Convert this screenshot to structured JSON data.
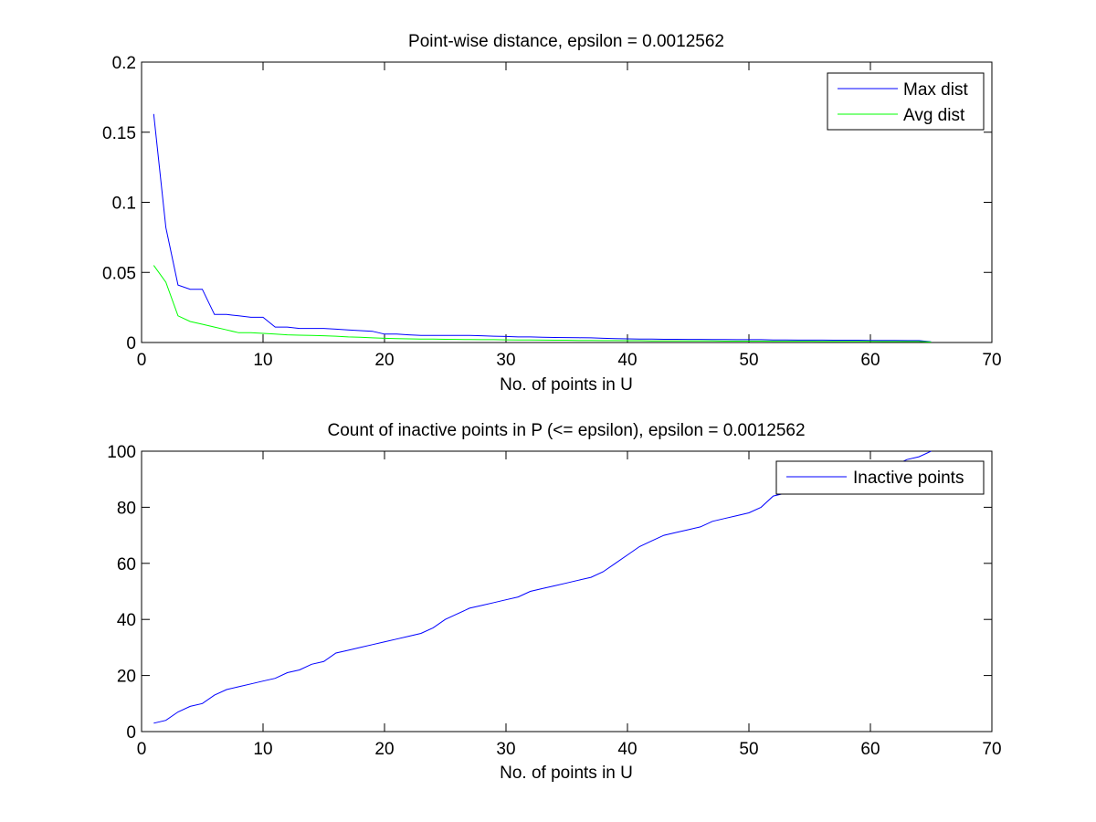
{
  "chart_data": [
    {
      "type": "line",
      "title": "Point-wise distance, epsilon = 0.0012562",
      "xlabel": "No. of points in U",
      "ylabel": "",
      "xlim": [
        0,
        70
      ],
      "ylim": [
        0,
        0.2
      ],
      "xticks": [
        "0",
        "10",
        "20",
        "30",
        "40",
        "50",
        "60",
        "70"
      ],
      "yticks": [
        "0",
        "0.05",
        "0.1",
        "0.15",
        "0.2"
      ],
      "grid": false,
      "legend_position": "top-right",
      "series": [
        {
          "name": "Max dist",
          "color": "#0000ff",
          "x": [
            1,
            2,
            3,
            4,
            5,
            6,
            7,
            8,
            9,
            10,
            11,
            12,
            13,
            14,
            15,
            16,
            17,
            18,
            19,
            20,
            21,
            22,
            23,
            24,
            25,
            26,
            27,
            28,
            29,
            30,
            31,
            32,
            33,
            34,
            35,
            36,
            37,
            38,
            39,
            40,
            41,
            42,
            43,
            44,
            45,
            46,
            47,
            48,
            49,
            50,
            51,
            52,
            53,
            54,
            55,
            56,
            57,
            58,
            59,
            60,
            61,
            62,
            63,
            64,
            65
          ],
          "values": [
            0.163,
            0.082,
            0.041,
            0.038,
            0.038,
            0.02,
            0.02,
            0.019,
            0.018,
            0.018,
            0.011,
            0.011,
            0.01,
            0.01,
            0.01,
            0.0095,
            0.009,
            0.0085,
            0.008,
            0.006,
            0.006,
            0.0055,
            0.005,
            0.005,
            0.005,
            0.005,
            0.005,
            0.0048,
            0.0045,
            0.0043,
            0.004,
            0.004,
            0.0038,
            0.0036,
            0.0035,
            0.0034,
            0.0033,
            0.003,
            0.0028,
            0.0026,
            0.0024,
            0.0024,
            0.0023,
            0.0023,
            0.0022,
            0.0022,
            0.0021,
            0.0021,
            0.002,
            0.002,
            0.002,
            0.0018,
            0.0018,
            0.0017,
            0.0017,
            0.0017,
            0.0016,
            0.0016,
            0.0016,
            0.0015,
            0.0015,
            0.0015,
            0.0014,
            0.0014,
            0.0005
          ]
        },
        {
          "name": "Avg dist",
          "color": "#00ff00",
          "x": [
            1,
            2,
            3,
            4,
            5,
            6,
            7,
            8,
            9,
            10,
            11,
            12,
            13,
            14,
            15,
            16,
            17,
            18,
            19,
            20,
            21,
            22,
            23,
            24,
            25,
            26,
            27,
            28,
            29,
            30,
            31,
            32,
            33,
            34,
            35,
            36,
            37,
            38,
            39,
            40,
            41,
            42,
            43,
            44,
            45,
            46,
            47,
            48,
            49,
            50,
            51,
            52,
            53,
            54,
            55,
            56,
            57,
            58,
            59,
            60,
            61,
            62,
            63,
            64,
            65
          ],
          "values": [
            0.055,
            0.043,
            0.019,
            0.015,
            0.013,
            0.011,
            0.009,
            0.007,
            0.007,
            0.0065,
            0.006,
            0.0055,
            0.0052,
            0.005,
            0.0048,
            0.0045,
            0.004,
            0.0037,
            0.0033,
            0.003,
            0.0028,
            0.0026,
            0.0025,
            0.0024,
            0.0023,
            0.0022,
            0.0021,
            0.002,
            0.002,
            0.0019,
            0.0018,
            0.0018,
            0.0017,
            0.0016,
            0.0016,
            0.0015,
            0.0015,
            0.0014,
            0.0014,
            0.0013,
            0.0013,
            0.0012,
            0.0012,
            0.0012,
            0.0011,
            0.0011,
            0.0011,
            0.001,
            0.001,
            0.001,
            0.001,
            0.0009,
            0.0009,
            0.0009,
            0.0009,
            0.0008,
            0.0008,
            0.0008,
            0.0008,
            0.0008,
            0.0007,
            0.0007,
            0.0007,
            0.0007,
            0.0003
          ]
        }
      ]
    },
    {
      "type": "line",
      "title": "Count of inactive points in P (<= epsilon), epsilon = 0.0012562",
      "xlabel": "No. of points in U",
      "ylabel": "",
      "xlim": [
        0,
        70
      ],
      "ylim": [
        0,
        100
      ],
      "xticks": [
        "0",
        "10",
        "20",
        "30",
        "40",
        "50",
        "60",
        "70"
      ],
      "yticks": [
        "0",
        "20",
        "40",
        "60",
        "80",
        "100"
      ],
      "grid": false,
      "legend_position": "top-right",
      "series": [
        {
          "name": "Inactive points",
          "color": "#0000ff",
          "x": [
            1,
            2,
            3,
            4,
            5,
            6,
            7,
            8,
            9,
            10,
            11,
            12,
            13,
            14,
            15,
            16,
            17,
            18,
            19,
            20,
            21,
            22,
            23,
            24,
            25,
            26,
            27,
            28,
            29,
            30,
            31,
            32,
            33,
            34,
            35,
            36,
            37,
            38,
            39,
            40,
            41,
            42,
            43,
            44,
            45,
            46,
            47,
            48,
            49,
            50,
            51,
            52,
            53,
            54,
            55,
            56,
            57,
            58,
            59,
            60,
            61,
            62,
            63,
            64,
            65
          ],
          "values": [
            3,
            4,
            7,
            9,
            10,
            13,
            15,
            16,
            17,
            18,
            19,
            21,
            22,
            24,
            25,
            28,
            29,
            30,
            31,
            32,
            33,
            34,
            35,
            37,
            40,
            42,
            44,
            45,
            46,
            47,
            48,
            50,
            51,
            52,
            53,
            54,
            55,
            57,
            60,
            63,
            66,
            68,
            70,
            71,
            72,
            73,
            75,
            76,
            77,
            78,
            80,
            84,
            85,
            86,
            87,
            88,
            89,
            90,
            91,
            92,
            93,
            95,
            97,
            98,
            100
          ]
        }
      ]
    }
  ]
}
